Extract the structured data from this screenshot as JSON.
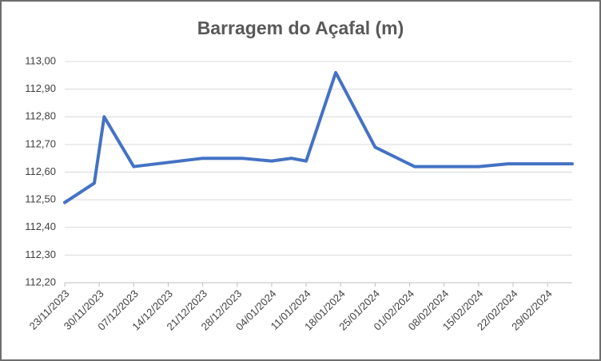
{
  "chart_data": {
    "type": "line",
    "title": "Barragem do Açafal (m)",
    "x": [
      "2023-11-23",
      "2023-11-29",
      "2023-12-01",
      "2023-12-07",
      "2023-12-21",
      "2023-12-29",
      "2024-01-04",
      "2024-01-08",
      "2024-01-11",
      "2024-01-17",
      "2024-01-25",
      "2024-02-02",
      "2024-02-15",
      "2024-02-21",
      "2024-03-05"
    ],
    "series": [
      {
        "name": "Barragem do Açafal",
        "color": "#4472c4",
        "values": [
          112.49,
          112.56,
          112.8,
          112.62,
          112.65,
          112.65,
          112.64,
          112.65,
          112.64,
          112.96,
          112.69,
          112.62,
          112.62,
          112.63,
          112.63
        ]
      }
    ],
    "xlim": [
      "2023-11-23",
      "2024-03-05"
    ],
    "xticks": [
      {
        "value": "2023-11-23",
        "label": "23/11/2023"
      },
      {
        "value": "2023-11-30",
        "label": "30/11/2023"
      },
      {
        "value": "2023-12-07",
        "label": "07/12/2023"
      },
      {
        "value": "2023-12-14",
        "label": "14/12/2023"
      },
      {
        "value": "2023-12-21",
        "label": "21/12/2023"
      },
      {
        "value": "2023-12-28",
        "label": "28/12/2023"
      },
      {
        "value": "2024-01-04",
        "label": "04/01/2024"
      },
      {
        "value": "2024-01-11",
        "label": "11/01/2024"
      },
      {
        "value": "2024-01-18",
        "label": "18/01/2024"
      },
      {
        "value": "2024-01-25",
        "label": "25/01/2024"
      },
      {
        "value": "2024-02-01",
        "label": "01/02/2024"
      },
      {
        "value": "2024-02-08",
        "label": "08/02/2024"
      },
      {
        "value": "2024-02-15",
        "label": "15/02/2024"
      },
      {
        "value": "2024-02-22",
        "label": "22/02/2024"
      },
      {
        "value": "2024-02-29",
        "label": "29/02/2024"
      }
    ],
    "ylim": [
      112.2,
      113.0
    ],
    "yticks": [
      {
        "value": 112.2,
        "label": "112,20"
      },
      {
        "value": 112.3,
        "label": "112,30"
      },
      {
        "value": 112.4,
        "label": "112,40"
      },
      {
        "value": 112.5,
        "label": "112,50"
      },
      {
        "value": 112.6,
        "label": "112,60"
      },
      {
        "value": 112.7,
        "label": "112,70"
      },
      {
        "value": 112.8,
        "label": "112,80"
      },
      {
        "value": 112.9,
        "label": "112,90"
      },
      {
        "value": 113.0,
        "label": "113,00"
      }
    ],
    "grid": true
  }
}
